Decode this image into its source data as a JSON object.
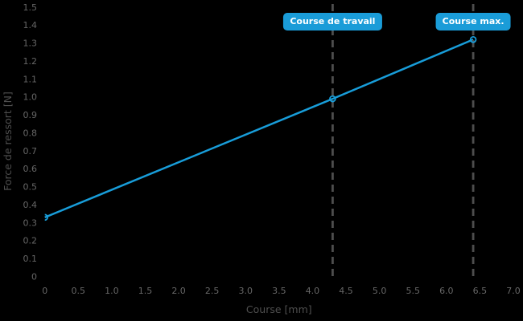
{
  "colors": {
    "background": "#000000",
    "line": "#189dd9",
    "marker_edge": "#189dd9",
    "dashed_line": "#4d4d4d",
    "tick_text": "#666666",
    "axis_title_text": "#4f4f4f",
    "annotation_bg": "#1a9cd8",
    "annotation_text": "#ffffff"
  },
  "chart_data": {
    "type": "line",
    "title": "",
    "xlabel": "Course [mm]",
    "ylabel": "Force de ressort [N]",
    "xlim": [
      0,
      7.0
    ],
    "ylim": [
      0,
      1.5
    ],
    "grid": false,
    "legend": "none",
    "x_ticks": [
      0,
      0.5,
      1.0,
      1.5,
      2.0,
      2.5,
      3.0,
      3.5,
      4.0,
      4.5,
      5.0,
      5.5,
      6.0,
      6.5,
      7.0
    ],
    "x_tick_labels": [
      "0",
      "0.5",
      "1.0",
      "1.5",
      "2.0",
      "2.5",
      "3.0",
      "3.5",
      "4.0",
      "4.5",
      "5.0",
      "5.5",
      "6.0",
      "6.5",
      "7.0"
    ],
    "y_ticks": [
      0,
      0.1,
      0.2,
      0.3,
      0.4,
      0.5,
      0.6,
      0.7,
      0.8,
      0.9,
      1.0,
      1.1,
      1.2,
      1.3,
      1.4,
      1.5
    ],
    "y_tick_labels": [
      "0",
      "0.1",
      "0.2",
      "0.3",
      "0.4",
      "0.5",
      "0.6",
      "0.7",
      "0.8",
      "0.9",
      "1.0",
      "1.1",
      "1.2",
      "1.3",
      "1.4",
      "1.5"
    ],
    "series": [
      {
        "name": "Force de ressort",
        "points": [
          {
            "x": 0,
            "y": 0.33
          },
          {
            "x": 4.3,
            "y": 0.99
          },
          {
            "x": 6.4,
            "y": 1.32
          }
        ]
      }
    ],
    "annotations": [
      {
        "label": "Course de travail",
        "x": 4.3
      },
      {
        "label": "Course max.",
        "x": 6.4
      }
    ]
  }
}
